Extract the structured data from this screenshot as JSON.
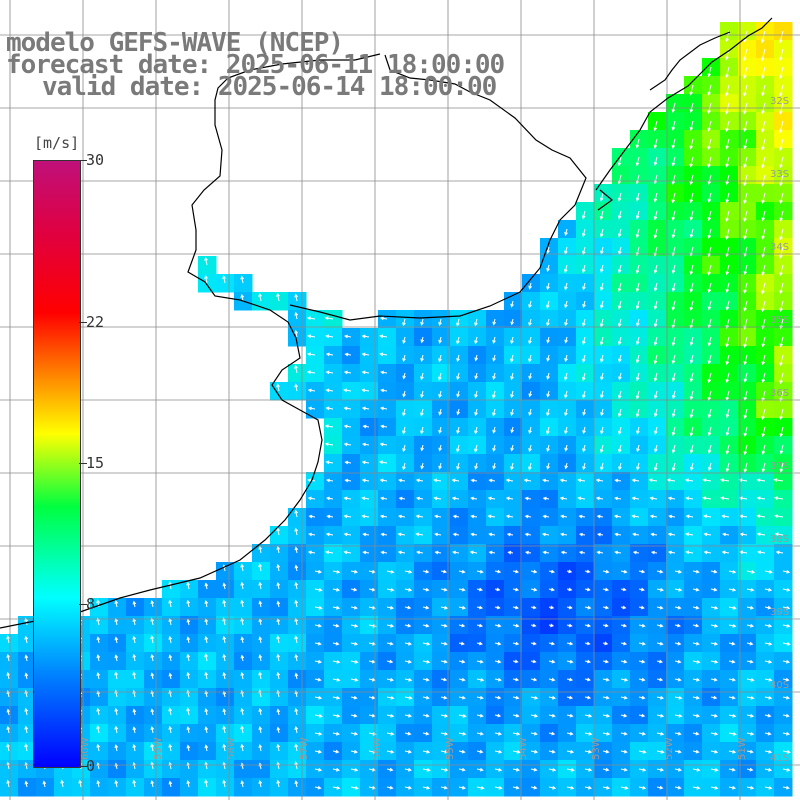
{
  "header": {
    "model": "modelo GEFS-WAVE (NCEP)",
    "forecast": "forecast date: 2025-06-11 18:00:00",
    "valid": "valid date: 2025-06-14 18:00:00"
  },
  "colorbar": {
    "unit": "[m/s]",
    "ticks": [
      "0",
      "8",
      "15",
      "22",
      "30"
    ],
    "tick_values": [
      0,
      8,
      15,
      22,
      30
    ],
    "min": 0,
    "max": 30,
    "colors": [
      "#0000ff",
      "#0080ff",
      "#00ffff",
      "#00ff40",
      "#ffff00",
      "#ff8000",
      "#ff0000",
      "#c0107a"
    ]
  },
  "map": {
    "lat_labels": [
      "32S",
      "33S",
      "34S",
      "35S",
      "36S",
      "37S",
      "38S",
      "39S",
      "40S",
      "41S"
    ],
    "lon_labels": [
      "60W",
      "59W",
      "58W",
      "57W",
      "56W",
      "55W",
      "54W",
      "53W",
      "52W",
      "51W"
    ],
    "land_color": "#ffffff",
    "grid_color": "#8a8a8a",
    "coast_color": "#000000",
    "arrow_color": "#ffffff"
  }
}
